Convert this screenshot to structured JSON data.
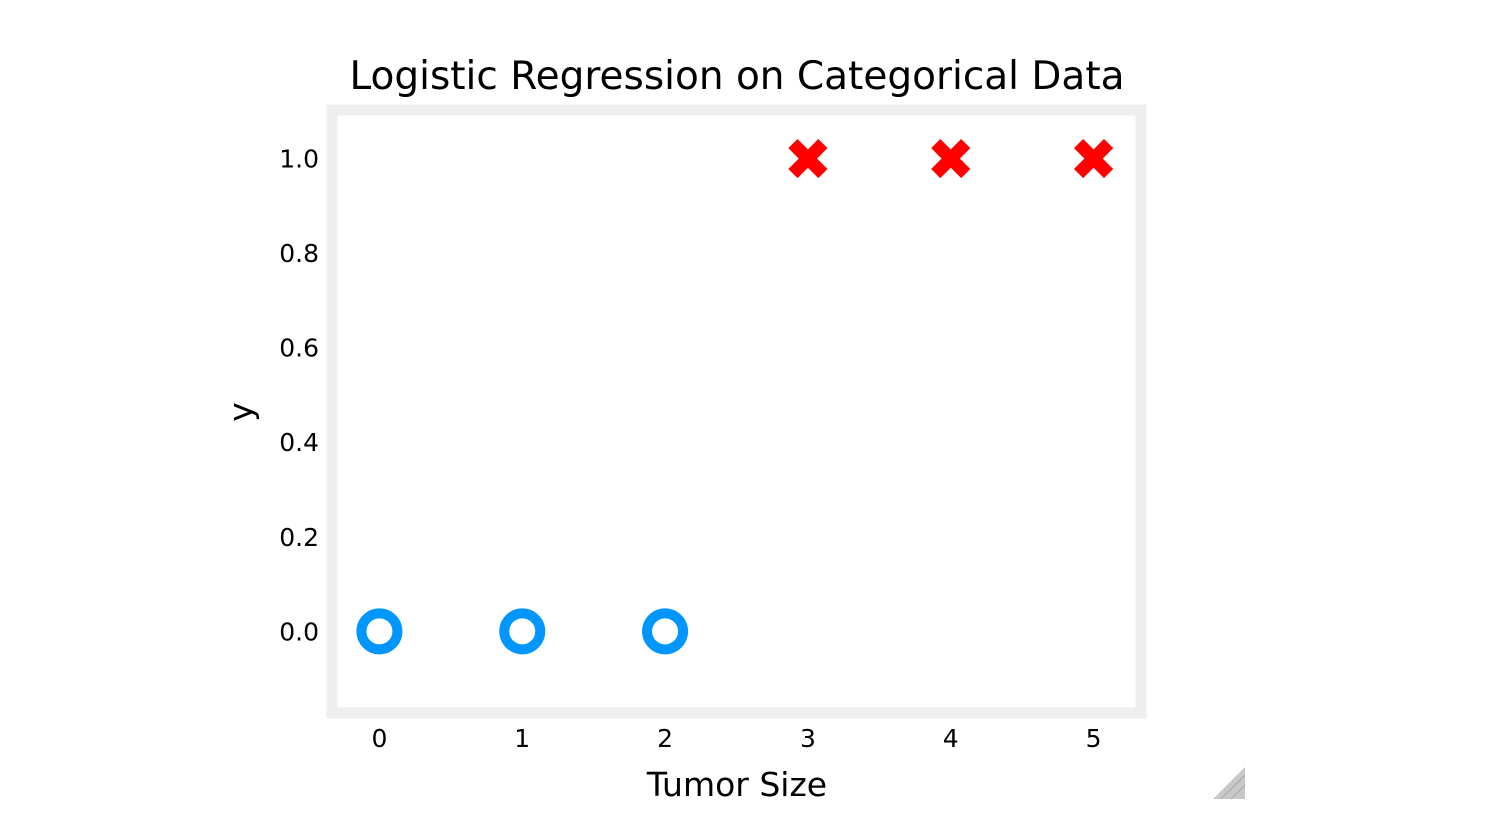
{
  "chart_data": {
    "type": "scatter",
    "title": "Logistic Regression on Categorical Data",
    "xlabel": "Tumor Size",
    "ylabel": "y",
    "xlim": [
      -0.29,
      5.29
    ],
    "ylim": [
      -0.16,
      1.09
    ],
    "xticks": [
      "0",
      "1",
      "2",
      "3",
      "4",
      "5"
    ],
    "yticks": [
      "0.0",
      "0.2",
      "0.4",
      "0.6",
      "0.8",
      "1.0"
    ],
    "grid": false,
    "legend": "none",
    "series": [
      {
        "marker": "circle-open",
        "color": "#0096ff",
        "points": [
          {
            "x": 0,
            "y": 0
          },
          {
            "x": 1,
            "y": 0
          },
          {
            "x": 2,
            "y": 0
          }
        ]
      },
      {
        "marker": "x-filled",
        "color": "#ff0000",
        "points": [
          {
            "x": 3,
            "y": 1
          },
          {
            "x": 4,
            "y": 1
          },
          {
            "x": 5,
            "y": 1
          }
        ]
      }
    ]
  }
}
